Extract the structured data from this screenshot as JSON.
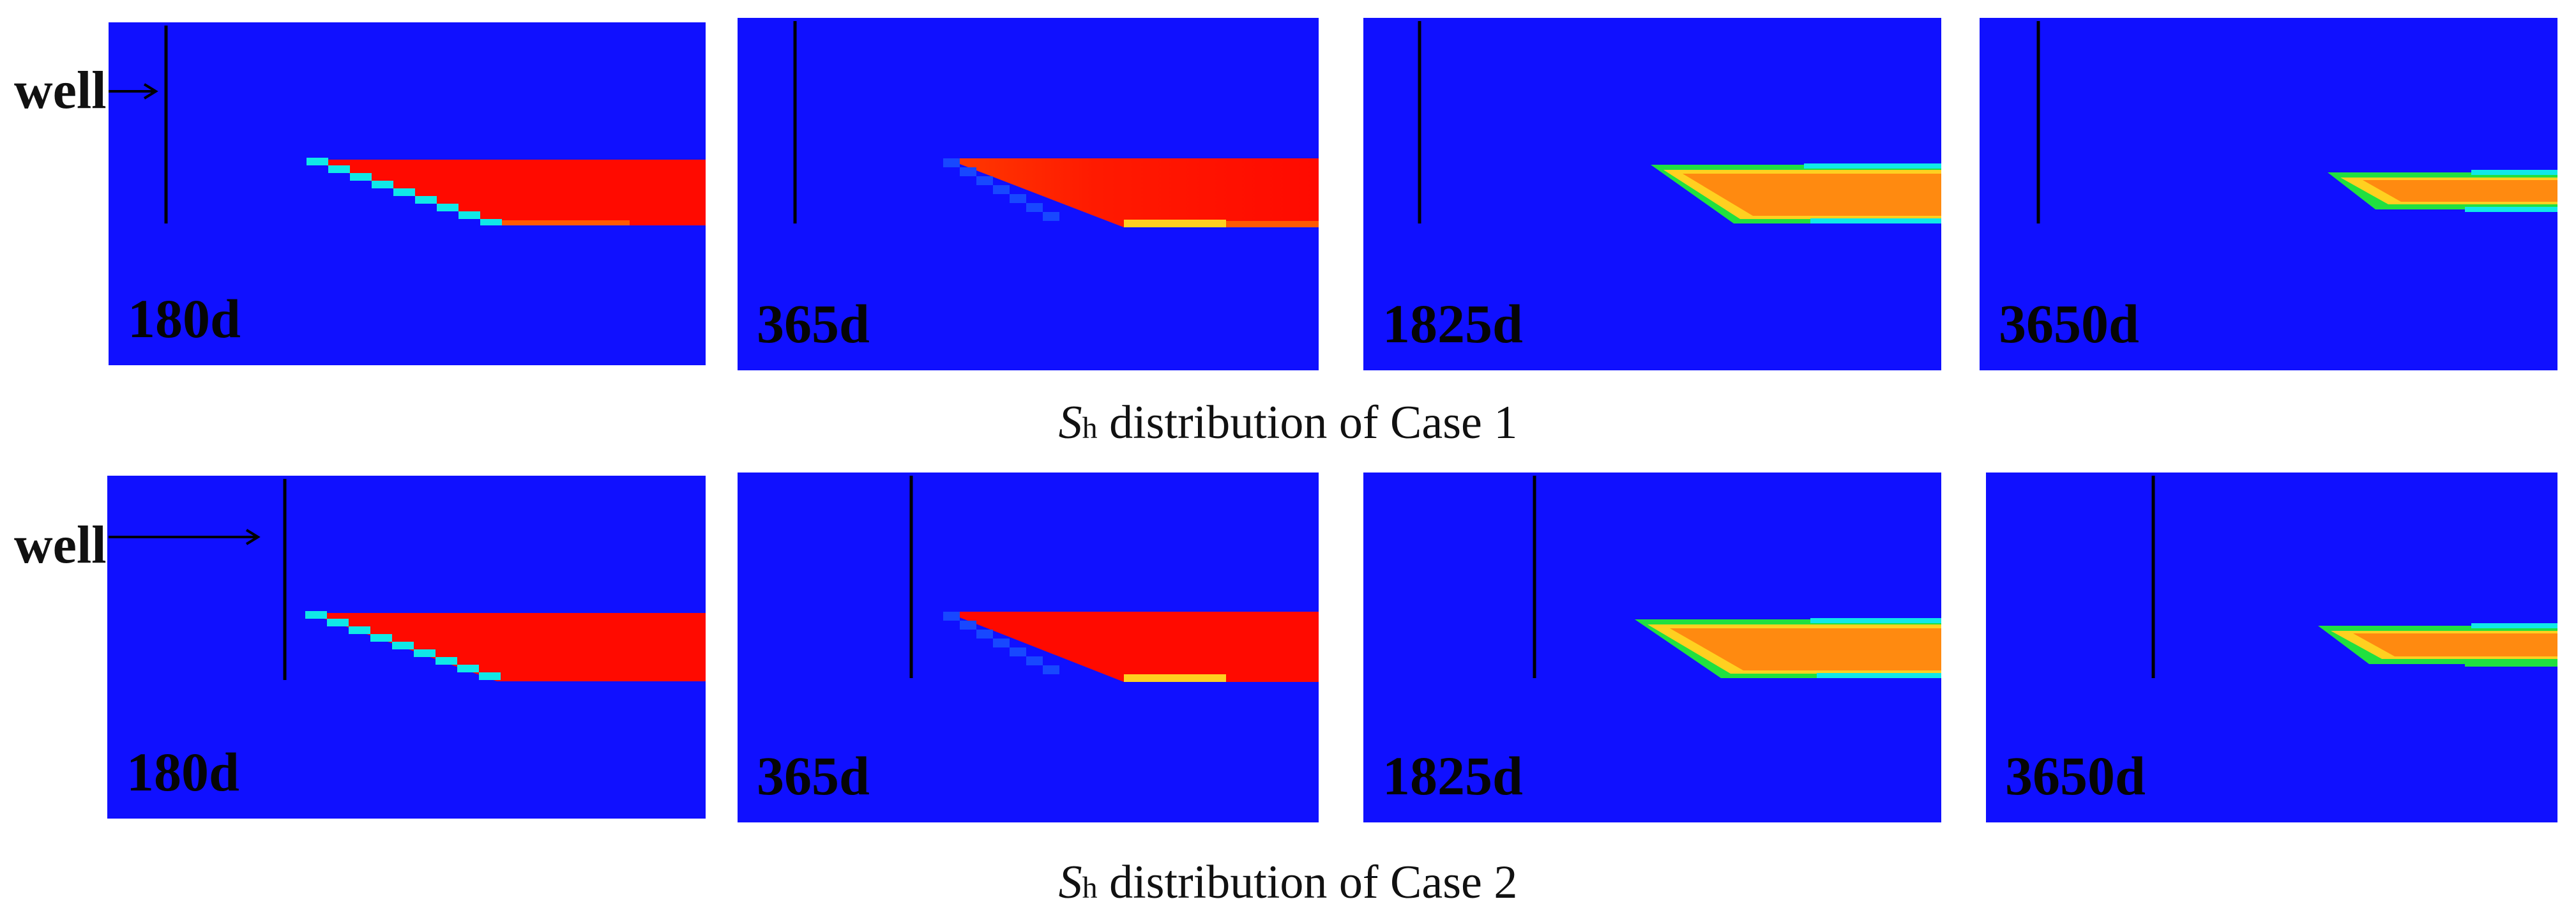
{
  "well_label": "well",
  "rows": [
    {
      "caption": {
        "symbol": "S",
        "subscript": "h",
        "text": " distribution of Case 1"
      },
      "panels": [
        {
          "label": "180d",
          "fill": "red"
        },
        {
          "label": "365d",
          "fill": "red-fading"
        },
        {
          "label": "1825d",
          "fill": "orange"
        },
        {
          "label": "3650d",
          "fill": "orange-thin"
        }
      ]
    },
    {
      "caption": {
        "symbol": "S",
        "subscript": "h",
        "text": " distribution of Case 2"
      },
      "panels": [
        {
          "label": "180d",
          "fill": "red"
        },
        {
          "label": "365d",
          "fill": "red-fading"
        },
        {
          "label": "1825d",
          "fill": "orange"
        },
        {
          "label": "3650d",
          "fill": "orange-thin"
        }
      ]
    }
  ],
  "colors": {
    "background": "#1010ff",
    "hydrate_high": "#ff0a00",
    "hydrate_mid": "#ff7a10",
    "edge_green": "#20e020",
    "edge_cyan": "#10e8e8",
    "edge_yellow": "#ffe020",
    "well_line": "#000000"
  }
}
